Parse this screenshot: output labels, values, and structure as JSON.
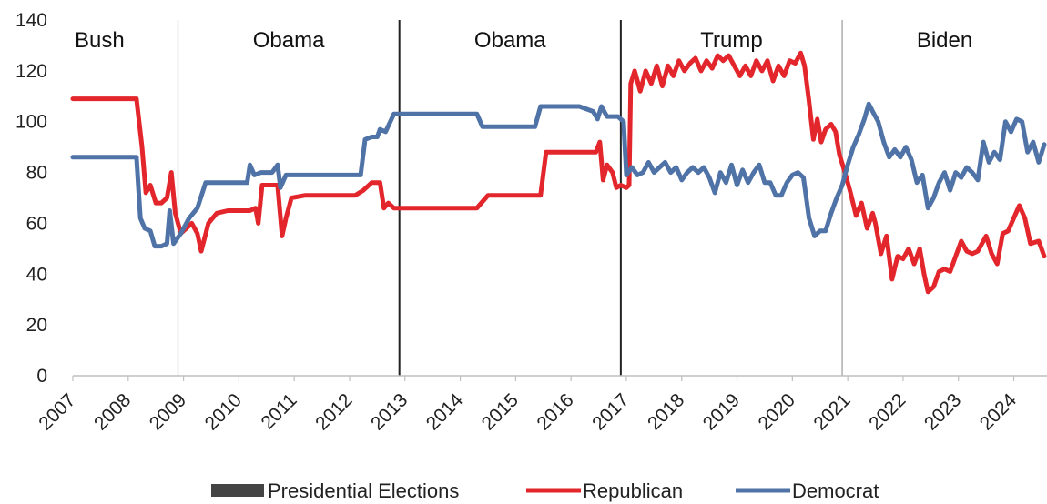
{
  "chart_data": {
    "type": "line",
    "title": "",
    "xlabel": "",
    "ylabel": "",
    "xlim": [
      2007,
      2024.6
    ],
    "ylim": [
      0,
      140
    ],
    "yticks": [
      0,
      20,
      40,
      60,
      80,
      100,
      120,
      140
    ],
    "xticks": [
      2007,
      2008,
      2009,
      2010,
      2011,
      2012,
      2013,
      2014,
      2015,
      2016,
      2017,
      2018,
      2019,
      2020,
      2021,
      2022,
      2023,
      2024
    ],
    "xtick_labels": [
      "2007",
      "2008",
      "2009",
      "2010",
      "2011",
      "2012",
      "2013",
      "2014",
      "2015",
      "2016",
      "2017",
      "2018",
      "2019",
      "2020",
      "2021",
      "2022",
      "2023",
      "2024"
    ],
    "grid": false,
    "legend_position": "bottom",
    "presidencies": [
      {
        "label": "Bush",
        "start": 2007,
        "end": 2008.9
      },
      {
        "label": "Obama",
        "start": 2008.9,
        "end": 2012.9
      },
      {
        "label": "Obama",
        "start": 2012.9,
        "end": 2016.9
      },
      {
        "label": "Trump",
        "start": 2016.9,
        "end": 2020.9
      },
      {
        "label": "Biden",
        "start": 2020.9,
        "end": 2024.6
      }
    ],
    "term_dividers": [
      {
        "x": 2008.9,
        "style": "thin"
      },
      {
        "x": 2012.9,
        "style": "bold"
      },
      {
        "x": 2016.9,
        "style": "bold"
      },
      {
        "x": 2020.9,
        "style": "thin"
      }
    ],
    "legend": [
      {
        "label": "Presidential Elections",
        "color": "#444444",
        "kind": "bar"
      },
      {
        "label": "Republican",
        "color": "#e3262b",
        "kind": "line"
      },
      {
        "label": "Democrat",
        "color": "#4f73a6",
        "kind": "line"
      }
    ],
    "series": [
      {
        "name": "Republican",
        "color": "#e3262b",
        "points": [
          [
            2007.0,
            109
          ],
          [
            2008.15,
            109
          ],
          [
            2008.25,
            90
          ],
          [
            2008.32,
            72
          ],
          [
            2008.4,
            75
          ],
          [
            2008.5,
            68
          ],
          [
            2008.6,
            68
          ],
          [
            2008.7,
            70
          ],
          [
            2008.78,
            80
          ],
          [
            2008.85,
            64
          ],
          [
            2008.95,
            56
          ],
          [
            2009.05,
            58
          ],
          [
            2009.15,
            60
          ],
          [
            2009.25,
            56
          ],
          [
            2009.32,
            49
          ],
          [
            2009.45,
            60
          ],
          [
            2009.6,
            64
          ],
          [
            2009.8,
            65
          ],
          [
            2010.0,
            65
          ],
          [
            2010.2,
            65
          ],
          [
            2010.3,
            66
          ],
          [
            2010.35,
            60
          ],
          [
            2010.42,
            75
          ],
          [
            2010.55,
            75
          ],
          [
            2010.7,
            75
          ],
          [
            2010.78,
            55
          ],
          [
            2010.85,
            62
          ],
          [
            2010.95,
            70
          ],
          [
            2011.2,
            71
          ],
          [
            2011.6,
            71
          ],
          [
            2012.0,
            71
          ],
          [
            2012.1,
            71
          ],
          [
            2012.25,
            73
          ],
          [
            2012.4,
            76
          ],
          [
            2012.55,
            76
          ],
          [
            2012.62,
            66
          ],
          [
            2012.7,
            68
          ],
          [
            2012.8,
            66
          ],
          [
            2013.0,
            66
          ],
          [
            2013.5,
            66
          ],
          [
            2014.0,
            66
          ],
          [
            2014.3,
            66
          ],
          [
            2014.5,
            71
          ],
          [
            2014.8,
            71
          ],
          [
            2015.2,
            71
          ],
          [
            2015.45,
            71
          ],
          [
            2015.55,
            88
          ],
          [
            2015.8,
            88
          ],
          [
            2016.2,
            88
          ],
          [
            2016.45,
            88
          ],
          [
            2016.52,
            92
          ],
          [
            2016.58,
            77
          ],
          [
            2016.65,
            83
          ],
          [
            2016.75,
            80
          ],
          [
            2016.82,
            74
          ],
          [
            2016.9,
            75
          ],
          [
            2017.0,
            74
          ],
          [
            2017.05,
            75
          ],
          [
            2017.08,
            115
          ],
          [
            2017.15,
            120
          ],
          [
            2017.25,
            112
          ],
          [
            2017.35,
            120
          ],
          [
            2017.45,
            115
          ],
          [
            2017.55,
            122
          ],
          [
            2017.65,
            114
          ],
          [
            2017.75,
            122
          ],
          [
            2017.85,
            118
          ],
          [
            2017.95,
            124
          ],
          [
            2018.05,
            120
          ],
          [
            2018.15,
            123
          ],
          [
            2018.25,
            125
          ],
          [
            2018.35,
            120
          ],
          [
            2018.45,
            124
          ],
          [
            2018.55,
            121
          ],
          [
            2018.65,
            126
          ],
          [
            2018.75,
            124
          ],
          [
            2018.85,
            126
          ],
          [
            2018.95,
            122
          ],
          [
            2019.05,
            118
          ],
          [
            2019.15,
            122
          ],
          [
            2019.25,
            118
          ],
          [
            2019.35,
            124
          ],
          [
            2019.45,
            120
          ],
          [
            2019.55,
            124
          ],
          [
            2019.65,
            116
          ],
          [
            2019.75,
            122
          ],
          [
            2019.85,
            118
          ],
          [
            2019.95,
            124
          ],
          [
            2020.05,
            123
          ],
          [
            2020.15,
            127
          ],
          [
            2020.22,
            122
          ],
          [
            2020.3,
            108
          ],
          [
            2020.38,
            93
          ],
          [
            2020.45,
            101
          ],
          [
            2020.52,
            92
          ],
          [
            2020.6,
            97
          ],
          [
            2020.7,
            99
          ],
          [
            2020.78,
            96
          ],
          [
            2020.85,
            87
          ],
          [
            2020.95,
            80
          ],
          [
            2021.05,
            72
          ],
          [
            2021.15,
            63
          ],
          [
            2021.25,
            68
          ],
          [
            2021.35,
            58
          ],
          [
            2021.45,
            64
          ],
          [
            2021.5,
            60
          ],
          [
            2021.6,
            48
          ],
          [
            2021.7,
            55
          ],
          [
            2021.8,
            38
          ],
          [
            2021.9,
            47
          ],
          [
            2022.0,
            46
          ],
          [
            2022.1,
            50
          ],
          [
            2022.2,
            44
          ],
          [
            2022.3,
            50
          ],
          [
            2022.38,
            40
          ],
          [
            2022.45,
            33
          ],
          [
            2022.55,
            35
          ],
          [
            2022.65,
            41
          ],
          [
            2022.75,
            42
          ],
          [
            2022.85,
            41
          ],
          [
            2022.95,
            47
          ],
          [
            2023.05,
            53
          ],
          [
            2023.15,
            49
          ],
          [
            2023.25,
            48
          ],
          [
            2023.35,
            49
          ],
          [
            2023.5,
            55
          ],
          [
            2023.6,
            48
          ],
          [
            2023.7,
            44
          ],
          [
            2023.8,
            56
          ],
          [
            2023.9,
            57
          ],
          [
            2024.0,
            62
          ],
          [
            2024.1,
            67
          ],
          [
            2024.2,
            62
          ],
          [
            2024.3,
            52
          ],
          [
            2024.45,
            53
          ],
          [
            2024.55,
            47
          ]
        ]
      },
      {
        "name": "Democrat",
        "color": "#4f73a6",
        "points": [
          [
            2007.0,
            86
          ],
          [
            2008.15,
            86
          ],
          [
            2008.22,
            62
          ],
          [
            2008.3,
            58
          ],
          [
            2008.4,
            57
          ],
          [
            2008.48,
            51
          ],
          [
            2008.6,
            51
          ],
          [
            2008.7,
            52
          ],
          [
            2008.75,
            65
          ],
          [
            2008.82,
            52
          ],
          [
            2008.95,
            56
          ],
          [
            2009.1,
            62
          ],
          [
            2009.25,
            66
          ],
          [
            2009.4,
            76
          ],
          [
            2009.6,
            76
          ],
          [
            2009.8,
            76
          ],
          [
            2010.0,
            76
          ],
          [
            2010.15,
            76
          ],
          [
            2010.2,
            83
          ],
          [
            2010.28,
            79
          ],
          [
            2010.4,
            80
          ],
          [
            2010.5,
            80
          ],
          [
            2010.6,
            80
          ],
          [
            2010.7,
            83
          ],
          [
            2010.75,
            74
          ],
          [
            2010.85,
            79
          ],
          [
            2011.0,
            79
          ],
          [
            2011.5,
            79
          ],
          [
            2012.0,
            79
          ],
          [
            2012.2,
            79
          ],
          [
            2012.28,
            93
          ],
          [
            2012.4,
            94
          ],
          [
            2012.5,
            94
          ],
          [
            2012.55,
            97
          ],
          [
            2012.65,
            96
          ],
          [
            2012.8,
            103
          ],
          [
            2013.0,
            103
          ],
          [
            2013.5,
            103
          ],
          [
            2014.0,
            103
          ],
          [
            2014.3,
            103
          ],
          [
            2014.4,
            98
          ],
          [
            2014.7,
            98
          ],
          [
            2015.1,
            98
          ],
          [
            2015.35,
            98
          ],
          [
            2015.45,
            106
          ],
          [
            2015.8,
            106
          ],
          [
            2016.15,
            106
          ],
          [
            2016.4,
            104
          ],
          [
            2016.48,
            101
          ],
          [
            2016.55,
            106
          ],
          [
            2016.65,
            102
          ],
          [
            2016.75,
            102
          ],
          [
            2016.85,
            102
          ],
          [
            2016.95,
            100
          ],
          [
            2017.0,
            79
          ],
          [
            2017.1,
            82
          ],
          [
            2017.2,
            79
          ],
          [
            2017.3,
            80
          ],
          [
            2017.4,
            84
          ],
          [
            2017.5,
            80
          ],
          [
            2017.6,
            82
          ],
          [
            2017.7,
            84
          ],
          [
            2017.8,
            80
          ],
          [
            2017.9,
            82
          ],
          [
            2018.0,
            77
          ],
          [
            2018.1,
            80
          ],
          [
            2018.2,
            82
          ],
          [
            2018.3,
            80
          ],
          [
            2018.4,
            82
          ],
          [
            2018.5,
            78
          ],
          [
            2018.6,
            72
          ],
          [
            2018.7,
            80
          ],
          [
            2018.8,
            76
          ],
          [
            2018.9,
            83
          ],
          [
            2019.0,
            75
          ],
          [
            2019.1,
            81
          ],
          [
            2019.2,
            76
          ],
          [
            2019.3,
            80
          ],
          [
            2019.4,
            83
          ],
          [
            2019.5,
            76
          ],
          [
            2019.6,
            76
          ],
          [
            2019.7,
            71
          ],
          [
            2019.8,
            71
          ],
          [
            2019.9,
            76
          ],
          [
            2020.0,
            79
          ],
          [
            2020.1,
            80
          ],
          [
            2020.2,
            78
          ],
          [
            2020.3,
            62
          ],
          [
            2020.4,
            55
          ],
          [
            2020.5,
            57
          ],
          [
            2020.6,
            57
          ],
          [
            2020.7,
            64
          ],
          [
            2020.8,
            70
          ],
          [
            2020.9,
            75
          ],
          [
            2021.0,
            83
          ],
          [
            2021.1,
            90
          ],
          [
            2021.2,
            95
          ],
          [
            2021.3,
            101
          ],
          [
            2021.38,
            107
          ],
          [
            2021.45,
            104
          ],
          [
            2021.55,
            100
          ],
          [
            2021.65,
            92
          ],
          [
            2021.75,
            86
          ],
          [
            2021.85,
            89
          ],
          [
            2021.95,
            86
          ],
          [
            2022.05,
            90
          ],
          [
            2022.15,
            85
          ],
          [
            2022.25,
            76
          ],
          [
            2022.35,
            79
          ],
          [
            2022.45,
            66
          ],
          [
            2022.55,
            70
          ],
          [
            2022.65,
            76
          ],
          [
            2022.75,
            80
          ],
          [
            2022.85,
            73
          ],
          [
            2022.95,
            80
          ],
          [
            2023.05,
            78
          ],
          [
            2023.15,
            82
          ],
          [
            2023.25,
            80
          ],
          [
            2023.35,
            77
          ],
          [
            2023.45,
            92
          ],
          [
            2023.55,
            84
          ],
          [
            2023.65,
            88
          ],
          [
            2023.75,
            85
          ],
          [
            2023.85,
            100
          ],
          [
            2023.95,
            96
          ],
          [
            2024.05,
            101
          ],
          [
            2024.15,
            100
          ],
          [
            2024.25,
            88
          ],
          [
            2024.35,
            92
          ],
          [
            2024.45,
            84
          ],
          [
            2024.55,
            91
          ]
        ]
      }
    ]
  }
}
